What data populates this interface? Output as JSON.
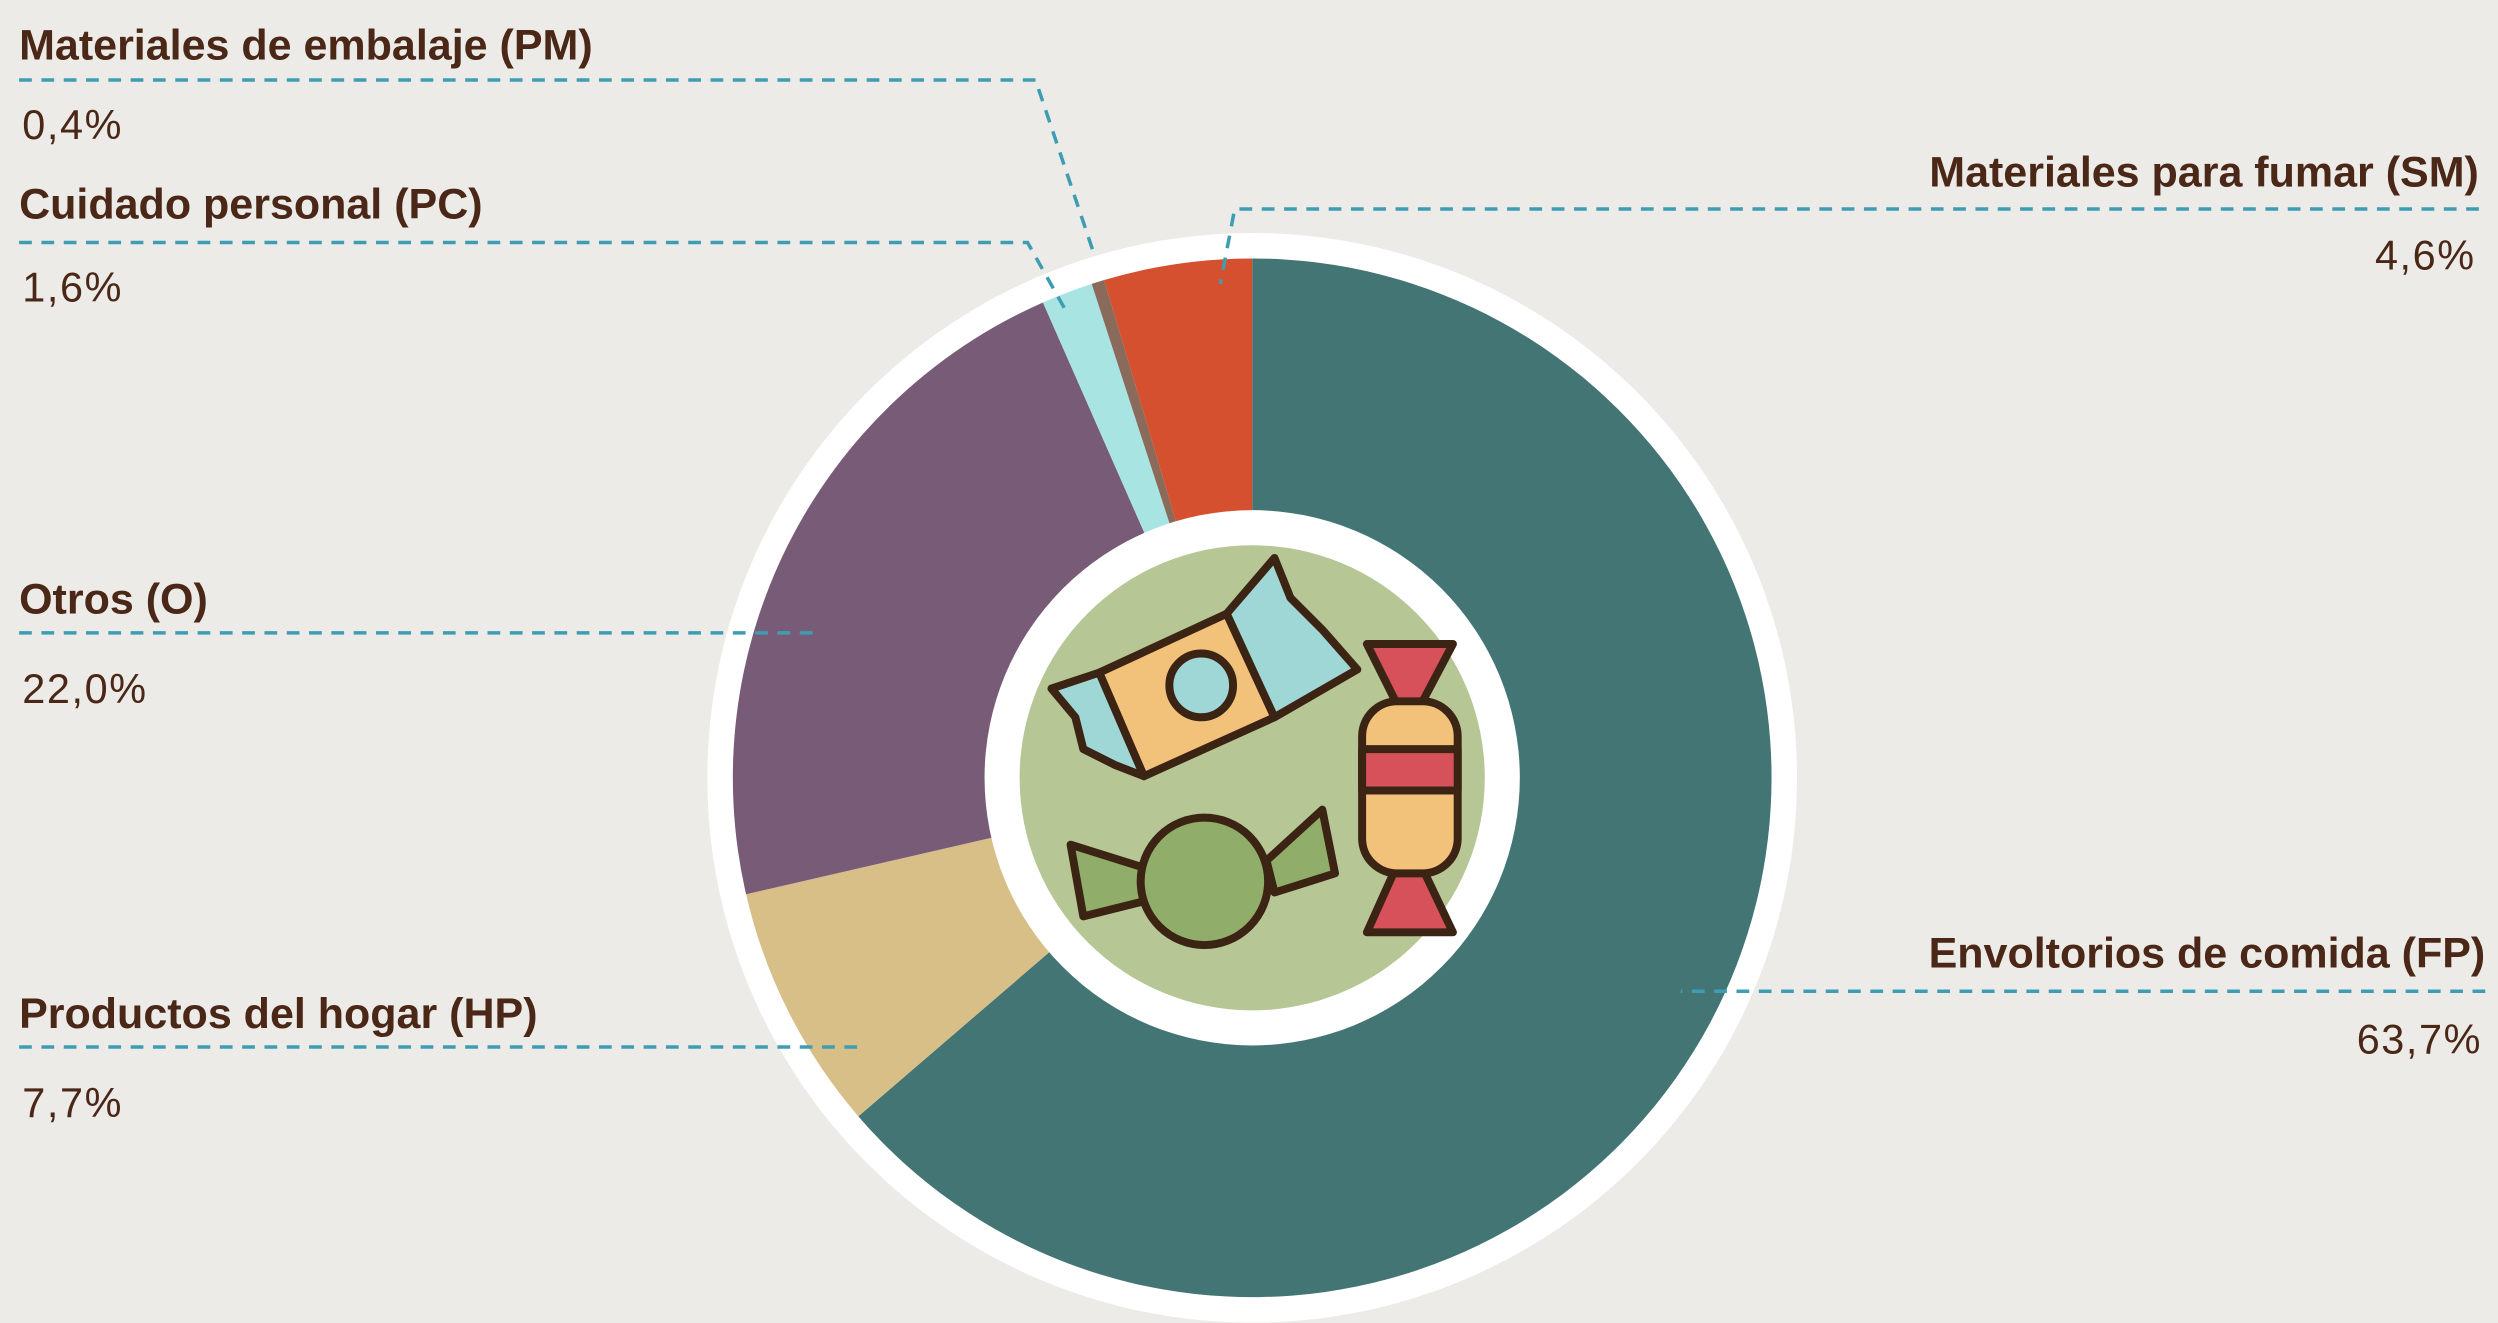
{
  "chart_data": {
    "type": "donut",
    "categories": [
      "Envoltorios de comida (FP)",
      "Productos del hogar (HP)",
      "Otros (O)",
      "Cuidado personal (PC)",
      "Materiales de embalaje (PM)",
      "Materiales para fumar (SM)"
    ],
    "values": [
      63.7,
      7.7,
      22.0,
      1.6,
      0.4,
      4.6
    ],
    "value_labels": [
      "63,7%",
      "7,7%",
      "22,0%",
      "1,6%",
      "0,4%",
      "4,6%"
    ],
    "colors": [
      "#437574",
      "#d8bf88",
      "#775b77",
      "#a8e4e2",
      "#8a6a5a",
      "#d4502e"
    ]
  }
}
